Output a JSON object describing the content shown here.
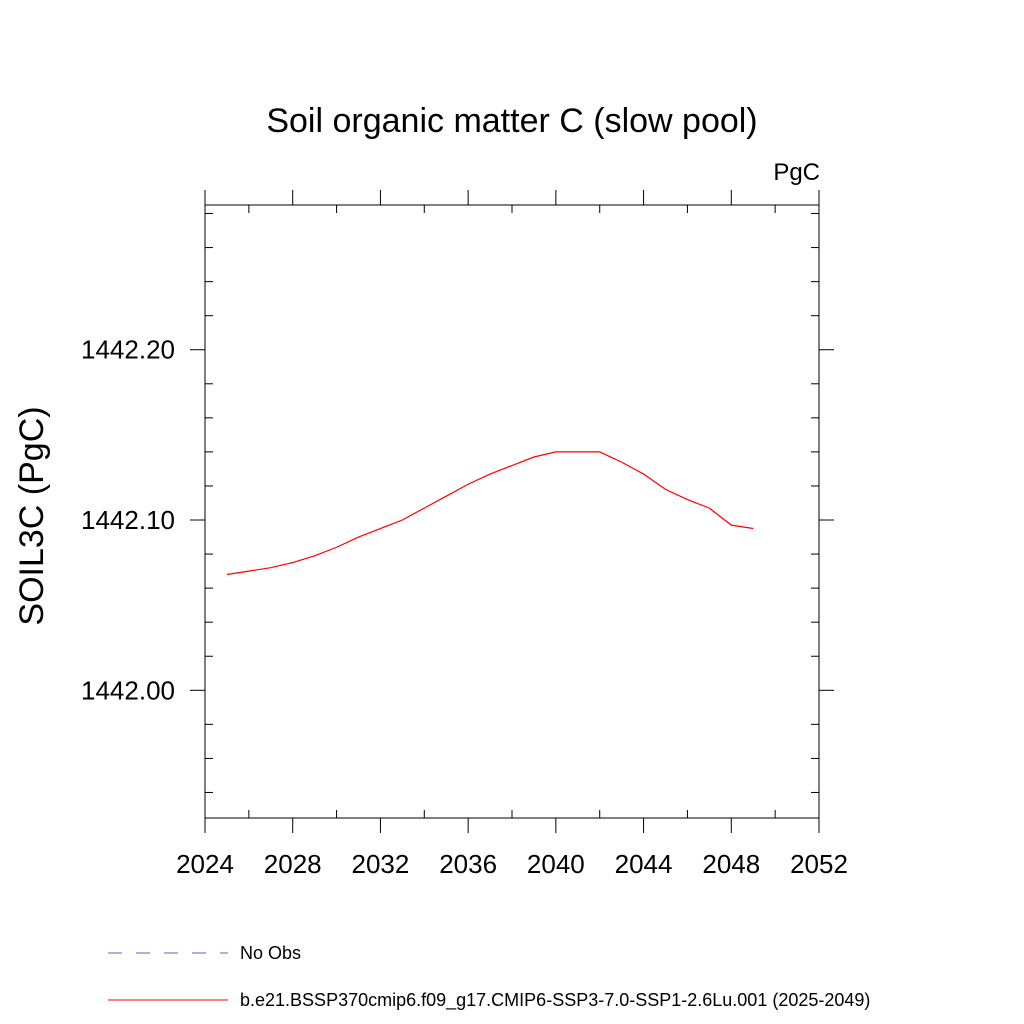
{
  "chart_data": {
    "type": "line",
    "title": "Soil organic matter C (slow pool)",
    "units": "PgC",
    "ylabel": "SOIL3C  (PgC)",
    "xlabel": "",
    "xlim": [
      2024,
      2052
    ],
    "ylim": [
      1441.925,
      1442.285
    ],
    "x_ticks": [
      2024,
      2028,
      2032,
      2036,
      2040,
      2044,
      2048,
      2052
    ],
    "x_tick_labels": [
      "2024",
      "2028",
      "2032",
      "2036",
      "2040",
      "2044",
      "2048",
      "2052"
    ],
    "y_ticks": [
      1442.0,
      1442.1,
      1442.2
    ],
    "y_tick_labels": [
      "1442.00",
      "1442.10",
      "1442.20"
    ],
    "grid": false,
    "series": [
      {
        "name": "No Obs",
        "color": "#6a5acd",
        "dash": "dashed",
        "x": [],
        "y": []
      },
      {
        "name": "b.e21.BSSP370cmip6.f09_g17.CMIP6-SSP3-7.0-SSP1-2.6Lu.001 (2025-2049)",
        "color": "#ff0000",
        "dash": "solid",
        "x": [
          2025,
          2026,
          2027,
          2028,
          2029,
          2030,
          2031,
          2032,
          2033,
          2034,
          2035,
          2036,
          2037,
          2038,
          2039,
          2040,
          2041,
          2042,
          2043,
          2044,
          2045,
          2046,
          2047,
          2048,
          2049
        ],
        "y": [
          1442.068,
          1442.07,
          1442.072,
          1442.075,
          1442.079,
          1442.084,
          1442.09,
          1442.095,
          1442.1,
          1442.107,
          1442.114,
          1442.121,
          1442.127,
          1442.132,
          1442.137,
          1442.14,
          1442.14,
          1442.14,
          1442.134,
          1442.127,
          1442.118,
          1442.112,
          1442.107,
          1442.097,
          1442.095
        ]
      }
    ],
    "legend_position": "bottom"
  }
}
